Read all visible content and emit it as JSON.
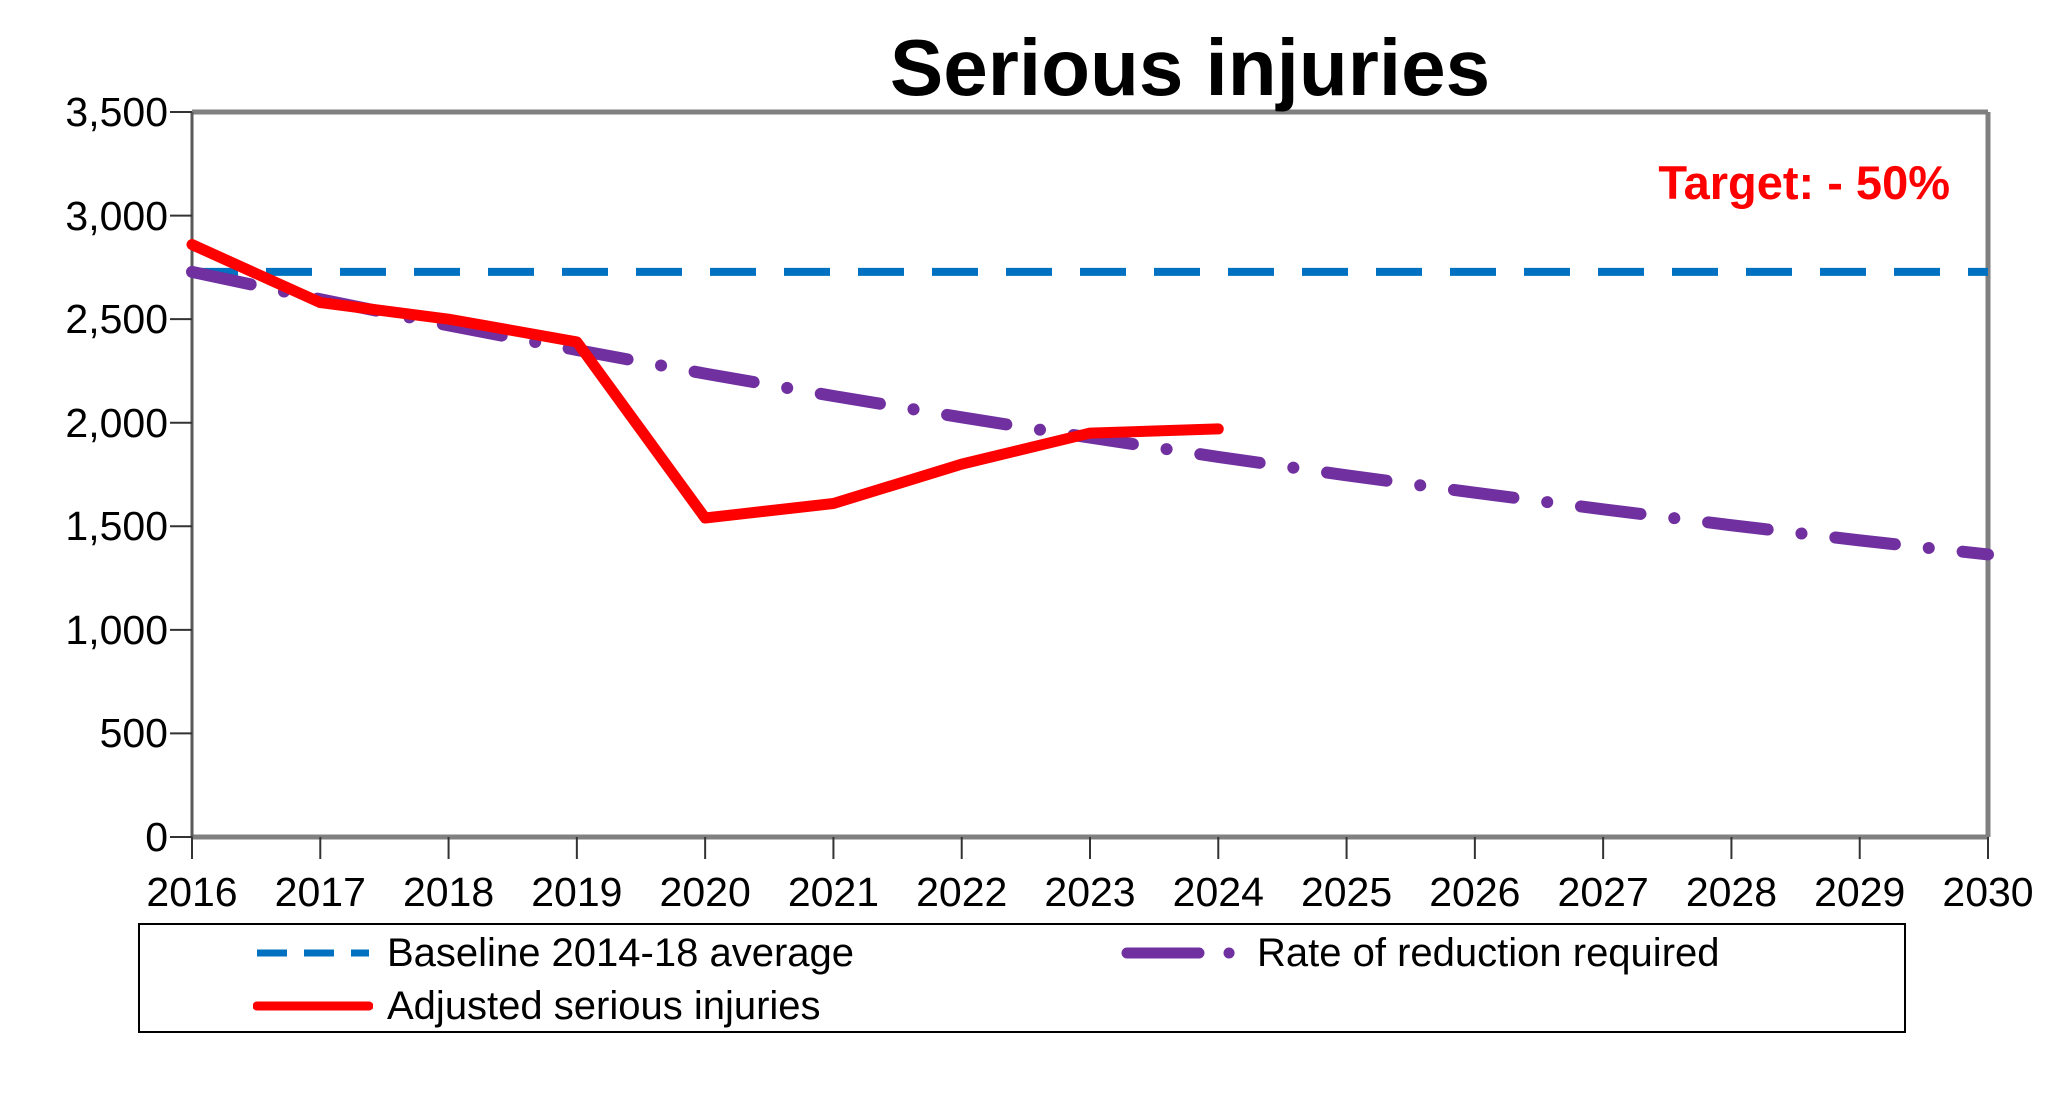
{
  "title": "Serious injuries",
  "annotation": {
    "text": "Target: - 50%",
    "color": "#FF0000"
  },
  "colors": {
    "baseline": "#0070C0",
    "rate": "#7030A0",
    "adjusted": "#FF0000",
    "plot_border": "#808080",
    "axis_line": "#595959",
    "tick": "#333333",
    "text": "#000000"
  },
  "chart_data": {
    "type": "line",
    "title": "Serious injuries",
    "xlabel": "",
    "ylabel": "",
    "xlim": [
      2016,
      2030
    ],
    "ylim": [
      0,
      3500
    ],
    "grid": false,
    "legend_position": "bottom",
    "x_tick_labels": [
      "2016",
      "2017",
      "2018",
      "2019",
      "2020",
      "2021",
      "2022",
      "2023",
      "2024",
      "2025",
      "2026",
      "2027",
      "2028",
      "2029",
      "2030"
    ],
    "x_tick_values": [
      2016,
      2017,
      2018,
      2019,
      2020,
      2021,
      2022,
      2023,
      2024,
      2025,
      2026,
      2027,
      2028,
      2029,
      2030
    ],
    "y_tick_labels": [
      "0",
      "500",
      "1,000",
      "1,500",
      "2,000",
      "2,500",
      "3,000",
      "3,500"
    ],
    "y_tick_values": [
      0,
      500,
      1000,
      1500,
      2000,
      2500,
      3000,
      3500
    ],
    "annotation": "Target: - 50%",
    "series": [
      {
        "name": "Baseline 2014-18 average",
        "style": "dashed",
        "color": "#0070C0",
        "x": [
          2016,
          2030
        ],
        "values": [
          2728,
          2728
        ]
      },
      {
        "name": "Rate of reduction required",
        "style": "dash-dot",
        "color": "#7030A0",
        "x": [
          2016,
          2017,
          2018,
          2019,
          2020,
          2021,
          2022,
          2023,
          2024,
          2025,
          2026,
          2027,
          2028,
          2029,
          2030
        ],
        "values": [
          2728,
          2596,
          2470,
          2351,
          2237,
          2129,
          2026,
          1928,
          1835,
          1746,
          1662,
          1582,
          1505,
          1432,
          1364
        ]
      },
      {
        "name": "Adjusted serious injuries",
        "style": "solid",
        "color": "#FF0000",
        "x": [
          2016,
          2017,
          2018,
          2019,
          2020,
          2021,
          2022,
          2023,
          2024
        ],
        "values": [
          2860,
          2580,
          2500,
          2390,
          1540,
          1610,
          1800,
          1950,
          1970
        ]
      }
    ]
  },
  "legend": {
    "row1_item1": "Baseline 2014-18 average",
    "row1_item2": "Rate of reduction required",
    "row2_item1": "Adjusted serious injuries"
  }
}
